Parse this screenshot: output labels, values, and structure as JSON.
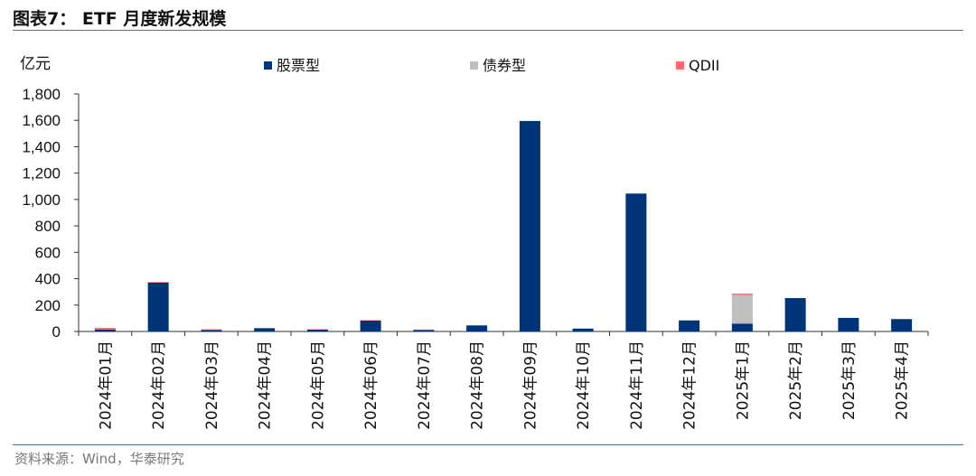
{
  "title": "图表7： ETF 月度新发规模",
  "source": "资料来源：Wind，华泰研究",
  "chart_data": {
    "type": "bar",
    "stacked": true,
    "ylabel": "亿元",
    "ylim": [
      0,
      1800
    ],
    "yticks": [
      0,
      200,
      400,
      600,
      800,
      1000,
      1200,
      1400,
      1600,
      1800
    ],
    "ytick_labels": [
      "0",
      "200",
      "400",
      "600",
      "800",
      "1,000",
      "1,200",
      "1,400",
      "1,600",
      "1,800"
    ],
    "grid": false,
    "legend_position": "top",
    "categories": [
      "2024年01月",
      "2024年02月",
      "2024年03月",
      "2024年04月",
      "2024年05月",
      "2024年06月",
      "2024年07月",
      "2024年08月",
      "2024年09月",
      "2024年10月",
      "2024年11月",
      "2024年12月",
      "2025年1月",
      "2025年2月",
      "2025年3月",
      "2025年4月"
    ],
    "series": [
      {
        "name": "股票型",
        "color": "#003478",
        "values": [
          15,
          370,
          12,
          25,
          14,
          82,
          12,
          46,
          1595,
          22,
          1045,
          84,
          60,
          253,
          103,
          94
        ]
      },
      {
        "name": "债券型",
        "color": "#bfbfbf",
        "values": [
          0,
          0,
          0,
          0,
          0,
          0,
          0,
          0,
          0,
          0,
          0,
          0,
          216,
          0,
          0,
          0
        ]
      },
      {
        "name": "QDII",
        "color": "#ff6b6b",
        "values": [
          13,
          5,
          5,
          1,
          3,
          4,
          3,
          0,
          0,
          0,
          0,
          0,
          11,
          0,
          0,
          0
        ]
      }
    ]
  }
}
